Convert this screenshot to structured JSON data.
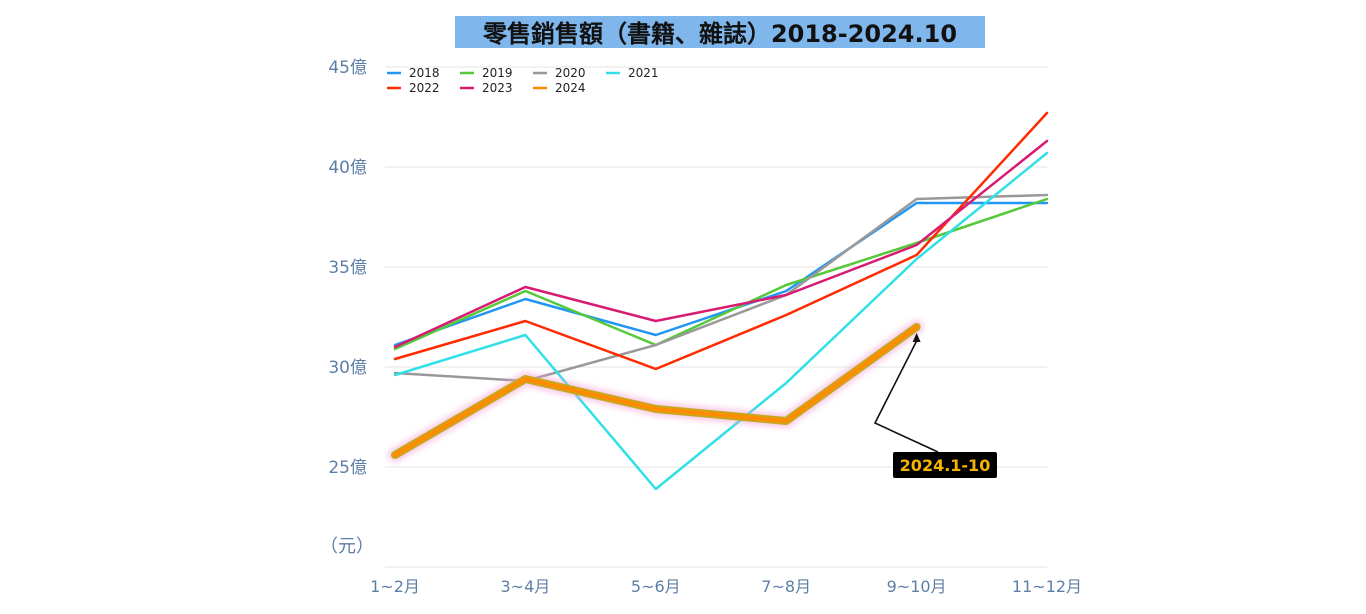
{
  "chart_data": {
    "type": "line",
    "title": "零售銷售額（書籍、雜誌）2018-2024.10",
    "unit_label": "（元）",
    "categories": [
      "1~2月",
      "3~4月",
      "5~6月",
      "7~8月",
      "9~10月",
      "11~12月"
    ],
    "y_tick_labels": [
      "25億",
      "30億",
      "35億",
      "40億",
      "45億"
    ],
    "y_ticks": [
      25,
      30,
      35,
      40,
      45
    ],
    "ylim": [
      20,
      45
    ],
    "grid": true,
    "legend_position": "top-left",
    "series": [
      {
        "name": "2018",
        "color": "#2196f3",
        "values": [
          31.1,
          33.4,
          31.6,
          33.8,
          38.2,
          38.2
        ]
      },
      {
        "name": "2019",
        "color": "#55c93a",
        "values": [
          30.9,
          33.8,
          31.1,
          34.1,
          36.2,
          38.4
        ]
      },
      {
        "name": "2020",
        "color": "#999999",
        "values": [
          29.7,
          29.3,
          31.1,
          33.6,
          38.4,
          38.6
        ]
      },
      {
        "name": "2021",
        "color": "#30e0e6",
        "values": [
          29.6,
          31.6,
          23.9,
          29.2,
          35.4,
          40.7
        ]
      },
      {
        "name": "2022",
        "color": "#ff2a00",
        "values": [
          30.4,
          32.3,
          29.9,
          32.6,
          35.6,
          42.7
        ]
      },
      {
        "name": "2023",
        "color": "#d81b72",
        "values": [
          31.0,
          34.0,
          32.3,
          33.6,
          36.1,
          41.3
        ]
      },
      {
        "name": "2024",
        "color": "#ff8c00",
        "values": [
          25.6,
          29.4,
          27.9,
          27.3,
          32.0,
          null
        ]
      }
    ],
    "annotations": [
      {
        "text": "2024.1-10",
        "category_index": 4,
        "value": 32.0
      }
    ]
  }
}
